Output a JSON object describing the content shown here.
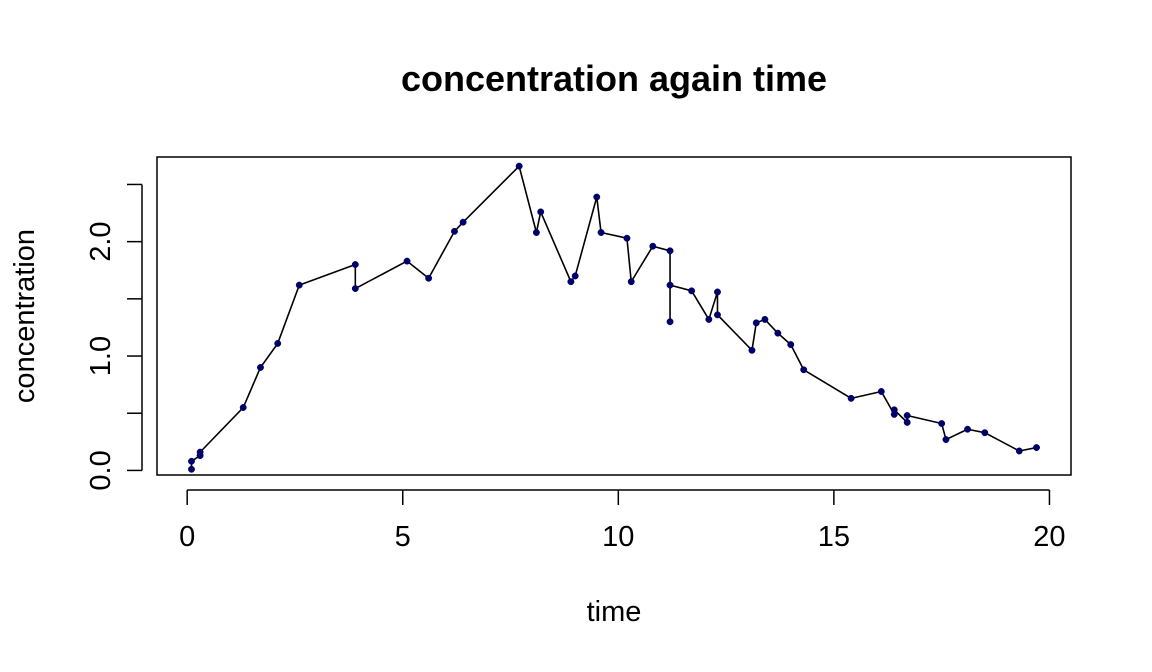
{
  "chart_data": {
    "type": "line",
    "title": "concentration again time",
    "xlabel": "time",
    "ylabel": "concentration",
    "xlim": [
      -0.7,
      20.5
    ],
    "ylim": [
      -0.04,
      2.74
    ],
    "x_ticks": [
      0,
      5,
      10,
      15,
      20
    ],
    "x_tick_labels": [
      "0",
      "5",
      "10",
      "15",
      "20"
    ],
    "y_ticks": [
      0.0,
      0.5,
      1.0,
      1.5,
      2.0,
      2.5
    ],
    "y_tick_labels": [
      "0.0",
      "",
      "1.0",
      "",
      "2.0",
      ""
    ],
    "grid": false,
    "line_color": "#000000",
    "point_color": "#00006b",
    "series": [
      {
        "x": [
          0.1,
          0.1,
          0.3,
          0.3,
          1.3,
          1.7,
          2.1,
          2.6,
          3.9,
          3.9,
          5.1,
          5.6,
          6.2,
          6.4,
          7.7,
          8.1,
          8.2,
          8.9,
          9.0,
          9.5,
          9.6,
          10.2,
          10.3,
          10.8,
          11.2,
          11.2,
          11.2,
          11.7,
          12.1,
          12.3,
          12.3,
          13.1,
          13.2,
          13.4,
          13.7,
          14.0,
          14.3,
          15.4,
          16.1,
          16.4,
          16.4,
          16.7,
          16.7,
          17.5,
          17.6,
          18.1,
          18.5,
          19.3,
          19.7
        ],
        "y": [
          0.01,
          0.08,
          0.13,
          0.16,
          0.55,
          0.9,
          1.11,
          1.62,
          1.8,
          1.59,
          1.83,
          1.68,
          2.09,
          2.17,
          2.66,
          2.08,
          2.26,
          1.65,
          1.7,
          2.39,
          2.08,
          2.03,
          1.65,
          1.96,
          1.92,
          1.3,
          1.62,
          1.57,
          1.32,
          1.56,
          1.36,
          1.05,
          1.29,
          1.32,
          1.2,
          1.1,
          0.88,
          0.63,
          0.69,
          0.49,
          0.53,
          0.42,
          0.48,
          0.41,
          0.27,
          0.36,
          0.33,
          0.17,
          0.2
        ]
      }
    ]
  }
}
